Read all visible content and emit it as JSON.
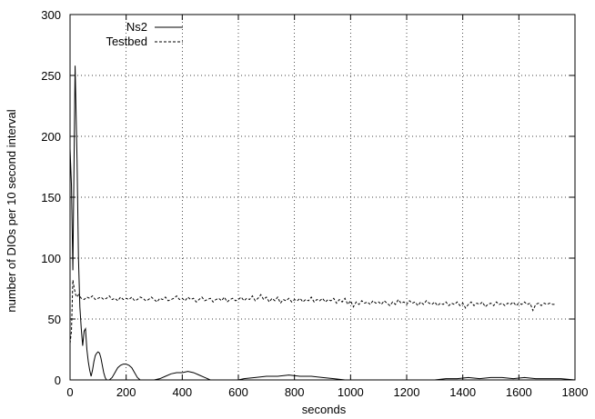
{
  "chart_data": {
    "type": "line",
    "title": "",
    "xlabel": "seconds",
    "ylabel": "number of DIOs per 10 second interval",
    "xlim": [
      0,
      1800
    ],
    "ylim": [
      0,
      300
    ],
    "xticks": [
      0,
      200,
      400,
      600,
      800,
      1000,
      1200,
      1400,
      1600,
      1800
    ],
    "yticks": [
      0,
      50,
      100,
      150,
      200,
      250,
      300
    ],
    "grid": true,
    "legend_position": "top-left",
    "series": [
      {
        "name": "Ns2",
        "style": "solid",
        "color": "#000000",
        "points": [
          [
            0,
            190
          ],
          [
            5,
            160
          ],
          [
            10,
            90
          ],
          [
            18,
            258
          ],
          [
            25,
            180
          ],
          [
            30,
            100
          ],
          [
            35,
            60
          ],
          [
            40,
            42
          ],
          [
            45,
            28
          ],
          [
            50,
            40
          ],
          [
            55,
            42
          ],
          [
            60,
            25
          ],
          [
            65,
            15
          ],
          [
            70,
            8
          ],
          [
            75,
            3
          ],
          [
            80,
            8
          ],
          [
            85,
            15
          ],
          [
            90,
            20
          ],
          [
            95,
            22
          ],
          [
            100,
            23
          ],
          [
            105,
            22
          ],
          [
            110,
            18
          ],
          [
            115,
            12
          ],
          [
            120,
            6
          ],
          [
            125,
            2
          ],
          [
            130,
            0
          ],
          [
            140,
            0
          ],
          [
            150,
            2
          ],
          [
            160,
            6
          ],
          [
            170,
            10
          ],
          [
            180,
            12
          ],
          [
            190,
            13
          ],
          [
            200,
            13
          ],
          [
            210,
            12
          ],
          [
            220,
            10
          ],
          [
            230,
            6
          ],
          [
            240,
            2
          ],
          [
            250,
            0
          ],
          [
            300,
            0
          ],
          [
            320,
            1
          ],
          [
            340,
            3
          ],
          [
            360,
            5
          ],
          [
            380,
            6
          ],
          [
            400,
            6
          ],
          [
            420,
            7
          ],
          [
            440,
            6
          ],
          [
            460,
            4
          ],
          [
            480,
            2
          ],
          [
            500,
            0
          ],
          [
            600,
            0
          ],
          [
            620,
            1
          ],
          [
            660,
            2
          ],
          [
            700,
            3
          ],
          [
            740,
            3
          ],
          [
            780,
            4
          ],
          [
            820,
            3
          ],
          [
            860,
            3
          ],
          [
            900,
            2
          ],
          [
            940,
            1
          ],
          [
            980,
            0
          ],
          [
            1300,
            0
          ],
          [
            1340,
            1
          ],
          [
            1380,
            1
          ],
          [
            1420,
            2
          ],
          [
            1460,
            1
          ],
          [
            1500,
            2
          ],
          [
            1540,
            2
          ],
          [
            1580,
            1
          ],
          [
            1620,
            2
          ],
          [
            1660,
            1
          ],
          [
            1700,
            1
          ],
          [
            1750,
            1
          ],
          [
            1800,
            0
          ]
        ]
      },
      {
        "name": "Testbed",
        "style": "dashed",
        "color": "#000000",
        "points": [
          [
            0,
            30
          ],
          [
            5,
            40
          ],
          [
            10,
            82
          ],
          [
            15,
            75
          ],
          [
            20,
            70
          ],
          [
            25,
            68
          ],
          [
            30,
            70
          ],
          [
            40,
            67
          ],
          [
            50,
            66
          ],
          [
            60,
            68
          ],
          [
            70,
            67
          ],
          [
            80,
            69
          ],
          [
            90,
            66
          ],
          [
            100,
            67
          ],
          [
            110,
            68
          ],
          [
            120,
            66
          ],
          [
            130,
            67
          ],
          [
            140,
            69
          ],
          [
            150,
            66
          ],
          [
            160,
            67
          ],
          [
            170,
            65
          ],
          [
            180,
            68
          ],
          [
            190,
            66
          ],
          [
            200,
            67
          ],
          [
            210,
            66
          ],
          [
            220,
            68
          ],
          [
            230,
            65
          ],
          [
            240,
            66
          ],
          [
            250,
            68
          ],
          [
            260,
            67
          ],
          [
            270,
            65
          ],
          [
            280,
            66
          ],
          [
            290,
            68
          ],
          [
            300,
            66
          ],
          [
            310,
            64
          ],
          [
            320,
            67
          ],
          [
            330,
            66
          ],
          [
            340,
            68
          ],
          [
            350,
            65
          ],
          [
            360,
            66
          ],
          [
            370,
            67
          ],
          [
            380,
            69
          ],
          [
            390,
            66
          ],
          [
            400,
            67
          ],
          [
            410,
            65
          ],
          [
            420,
            68
          ],
          [
            430,
            66
          ],
          [
            440,
            67
          ],
          [
            450,
            64
          ],
          [
            460,
            66
          ],
          [
            470,
            68
          ],
          [
            480,
            65
          ],
          [
            490,
            66
          ],
          [
            500,
            67
          ],
          [
            510,
            64
          ],
          [
            520,
            66
          ],
          [
            530,
            67
          ],
          [
            540,
            65
          ],
          [
            550,
            68
          ],
          [
            560,
            64
          ],
          [
            570,
            66
          ],
          [
            580,
            67
          ],
          [
            590,
            65
          ],
          [
            600,
            66
          ],
          [
            610,
            68
          ],
          [
            620,
            65
          ],
          [
            630,
            67
          ],
          [
            640,
            66
          ],
          [
            650,
            69
          ],
          [
            660,
            65
          ],
          [
            670,
            67
          ],
          [
            680,
            70
          ],
          [
            690,
            66
          ],
          [
            700,
            68
          ],
          [
            710,
            64
          ],
          [
            720,
            67
          ],
          [
            730,
            65
          ],
          [
            740,
            68
          ],
          [
            750,
            63
          ],
          [
            760,
            66
          ],
          [
            770,
            65
          ],
          [
            780,
            67
          ],
          [
            790,
            64
          ],
          [
            800,
            66
          ],
          [
            810,
            65
          ],
          [
            820,
            67
          ],
          [
            830,
            64
          ],
          [
            840,
            66
          ],
          [
            850,
            65
          ],
          [
            860,
            68
          ],
          [
            870,
            64
          ],
          [
            880,
            66
          ],
          [
            890,
            65
          ],
          [
            900,
            67
          ],
          [
            910,
            64
          ],
          [
            920,
            66
          ],
          [
            930,
            65
          ],
          [
            940,
            67
          ],
          [
            950,
            63
          ],
          [
            960,
            66
          ],
          [
            970,
            64
          ],
          [
            980,
            67
          ],
          [
            990,
            62
          ],
          [
            1000,
            65
          ],
          [
            1010,
            60
          ],
          [
            1020,
            64
          ],
          [
            1030,
            62
          ],
          [
            1040,
            65
          ],
          [
            1050,
            63
          ],
          [
            1060,
            64
          ],
          [
            1070,
            62
          ],
          [
            1080,
            65
          ],
          [
            1090,
            63
          ],
          [
            1100,
            64
          ],
          [
            1110,
            62
          ],
          [
            1120,
            65
          ],
          [
            1130,
            63
          ],
          [
            1140,
            61
          ],
          [
            1150,
            64
          ],
          [
            1160,
            62
          ],
          [
            1170,
            66
          ],
          [
            1180,
            63
          ],
          [
            1190,
            64
          ],
          [
            1200,
            62
          ],
          [
            1210,
            65
          ],
          [
            1220,
            63
          ],
          [
            1230,
            64
          ],
          [
            1240,
            61
          ],
          [
            1250,
            64
          ],
          [
            1260,
            62
          ],
          [
            1270,
            65
          ],
          [
            1280,
            63
          ],
          [
            1290,
            62
          ],
          [
            1300,
            64
          ],
          [
            1310,
            61
          ],
          [
            1320,
            63
          ],
          [
            1330,
            62
          ],
          [
            1340,
            64
          ],
          [
            1350,
            61
          ],
          [
            1360,
            63
          ],
          [
            1370,
            62
          ],
          [
            1380,
            64
          ],
          [
            1390,
            61
          ],
          [
            1400,
            63
          ],
          [
            1410,
            59
          ],
          [
            1420,
            62
          ],
          [
            1430,
            64
          ],
          [
            1440,
            61
          ],
          [
            1450,
            63
          ],
          [
            1460,
            62
          ],
          [
            1470,
            64
          ],
          [
            1480,
            60
          ],
          [
            1490,
            62
          ],
          [
            1500,
            63
          ],
          [
            1510,
            61
          ],
          [
            1520,
            64
          ],
          [
            1530,
            62
          ],
          [
            1540,
            63
          ],
          [
            1550,
            61
          ],
          [
            1560,
            63
          ],
          [
            1570,
            62
          ],
          [
            1580,
            64
          ],
          [
            1590,
            61
          ],
          [
            1600,
            63
          ],
          [
            1610,
            62
          ],
          [
            1620,
            64
          ],
          [
            1630,
            62
          ],
          [
            1640,
            63
          ],
          [
            1650,
            57
          ],
          [
            1660,
            62
          ],
          [
            1670,
            63
          ],
          [
            1680,
            61
          ],
          [
            1690,
            63
          ],
          [
            1700,
            62
          ],
          [
            1710,
            63
          ],
          [
            1720,
            62
          ],
          [
            1730,
            62
          ]
        ]
      }
    ]
  }
}
